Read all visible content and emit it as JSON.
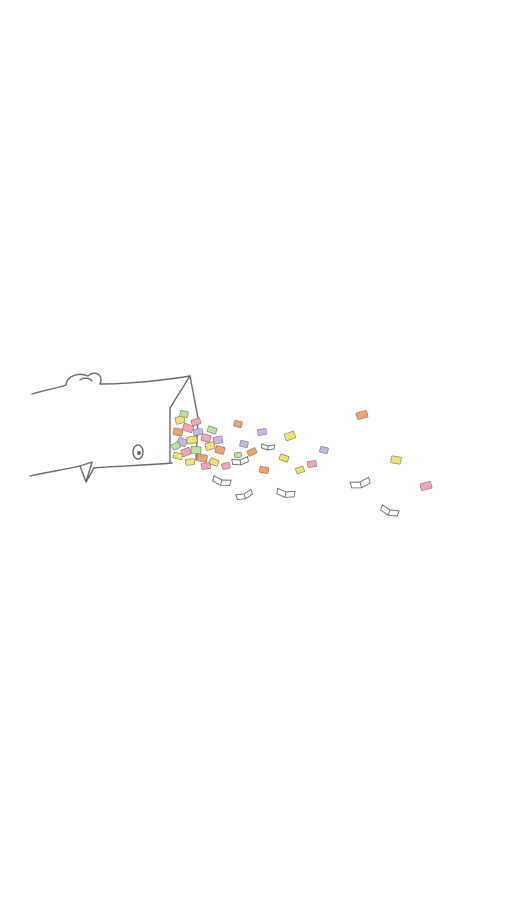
{
  "scene": {
    "background_color": "#ffffff",
    "line_color": "#6a6a6a",
    "book_colors": {
      "pink": "#f2a6b6",
      "yellow": "#f4e36a",
      "orange": "#f2a36a",
      "lavender": "#c8b6e6",
      "green": "#b9e59d",
      "white": "#ffffff"
    }
  }
}
